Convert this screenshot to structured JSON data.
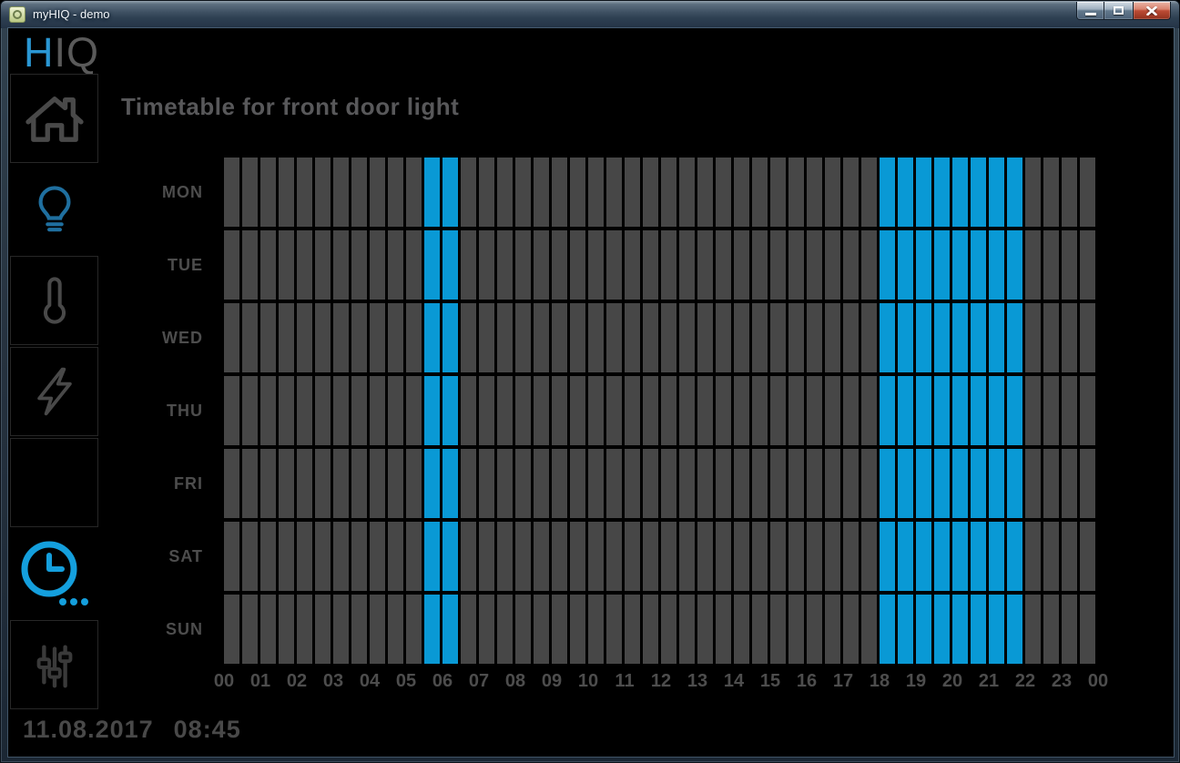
{
  "window": {
    "title": "myHIQ - demo",
    "controls": {
      "minimize": "minimize",
      "maximize": "maximize",
      "close": "close"
    }
  },
  "logo": {
    "accent": "H",
    "rest": "IQ"
  },
  "sidebar": {
    "items": [
      {
        "label": "home",
        "icon": "home-icon",
        "state": "inactive"
      },
      {
        "label": "lights",
        "icon": "lightbulb-icon",
        "state": "active"
      },
      {
        "label": "temperature",
        "icon": "thermometer-icon",
        "state": "inactive"
      },
      {
        "label": "energy",
        "icon": "lightning-icon",
        "state": "inactive"
      },
      {
        "label": "blank",
        "icon": "",
        "state": "inactive"
      },
      {
        "label": "timetable",
        "icon": "clock-icon",
        "state": "active"
      },
      {
        "label": "settings",
        "icon": "sliders-icon",
        "state": "inactive"
      }
    ]
  },
  "main": {
    "title": "Timetable for front door light"
  },
  "statusbar": {
    "date": "11.08.2017",
    "time": "08:45"
  },
  "colors": {
    "accent_blue": "#149fdd",
    "bulb_blue": "#1f6f9f",
    "icon_gray": "#494949",
    "sliders_gray": "#3a3a3a",
    "label_gray": "#4d4d4d",
    "cell_on": "#0999d5",
    "cell_off": "#474747"
  },
  "chart_data": {
    "type": "heatmap",
    "title": "Timetable for front door light",
    "rows": [
      "MON",
      "TUE",
      "WED",
      "THU",
      "FRI",
      "SAT",
      "SUN"
    ],
    "hour_labels": [
      "00",
      "01",
      "02",
      "03",
      "04",
      "05",
      "06",
      "07",
      "08",
      "09",
      "10",
      "11",
      "12",
      "13",
      "14",
      "15",
      "16",
      "17",
      "18",
      "19",
      "20",
      "21",
      "22",
      "23",
      "00"
    ],
    "slots_per_day": 48,
    "slot_minutes": 30,
    "applies_to": "all_days",
    "on_intervals": [
      {
        "start": "05:30",
        "end": "06:30"
      },
      {
        "start": "18:00",
        "end": "22:00"
      }
    ],
    "on_slot_indices": [
      11,
      12,
      36,
      37,
      38,
      39,
      40,
      41,
      42,
      43
    ],
    "cell_on_color": "#0999d5",
    "cell_off_color": "#474747",
    "grid": "off",
    "legend": "none"
  }
}
